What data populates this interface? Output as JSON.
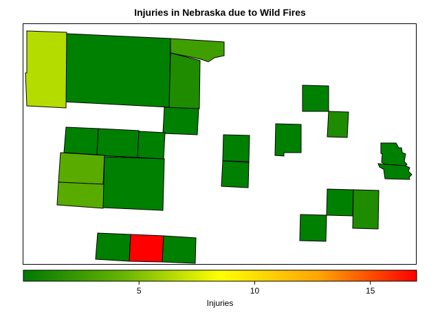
{
  "title": "Injuries in Nebraska due to Wild Fires",
  "legend": {
    "label": "Injuries",
    "ticks": [
      "5",
      "10",
      "15"
    ],
    "min": 0,
    "max": 17,
    "colors": [
      "#007a00",
      "#66b300",
      "#ffff00",
      "#ffa500",
      "#ff0000"
    ]
  },
  "counties": [
    {
      "id": "nw-large",
      "injuries": 1,
      "color": "#008000"
    },
    {
      "id": "nw-left",
      "injuries": 6,
      "color": "#b5dc00"
    },
    {
      "id": "nw-right-top",
      "injuries": 3,
      "color": "#3f9e00"
    },
    {
      "id": "nw-right-mid",
      "injuries": 2,
      "color": "#1f8c00"
    },
    {
      "id": "nw-below",
      "injuries": 1,
      "color": "#008000"
    },
    {
      "id": "w-row1-a",
      "injuries": 1,
      "color": "#008000"
    },
    {
      "id": "w-row1-b",
      "injuries": 1,
      "color": "#008000"
    },
    {
      "id": "w-row1-c",
      "injuries": 1,
      "color": "#008000"
    },
    {
      "id": "w-row2-a",
      "injuries": 4,
      "color": "#5aab00"
    },
    {
      "id": "w-row3-a",
      "injuries": 4,
      "color": "#5aab00"
    },
    {
      "id": "w-big",
      "injuries": 1,
      "color": "#008000"
    },
    {
      "id": "s-left",
      "injuries": 1,
      "color": "#008000"
    },
    {
      "id": "s-red",
      "injuries": 17,
      "color": "#ff0000"
    },
    {
      "id": "s-right",
      "injuries": 1,
      "color": "#008000"
    },
    {
      "id": "c-top",
      "injuries": 1,
      "color": "#008000"
    },
    {
      "id": "c-bottom",
      "injuries": 1,
      "color": "#008000"
    },
    {
      "id": "e-1",
      "injuries": 1,
      "color": "#008000"
    },
    {
      "id": "e-2",
      "injuries": 1,
      "color": "#008000"
    },
    {
      "id": "e-3",
      "injuries": 2,
      "color": "#1f8c00"
    },
    {
      "id": "e-4",
      "injuries": 1,
      "color": "#008000"
    },
    {
      "id": "e-5",
      "injuries": 1,
      "color": "#008000"
    },
    {
      "id": "e-6",
      "injuries": 2,
      "color": "#1f8c00"
    },
    {
      "id": "e-7",
      "injuries": 1,
      "color": "#008000"
    },
    {
      "id": "se-top",
      "injuries": 1,
      "color": "#008000"
    },
    {
      "id": "se-bottom",
      "injuries": 1,
      "color": "#008000"
    }
  ]
}
